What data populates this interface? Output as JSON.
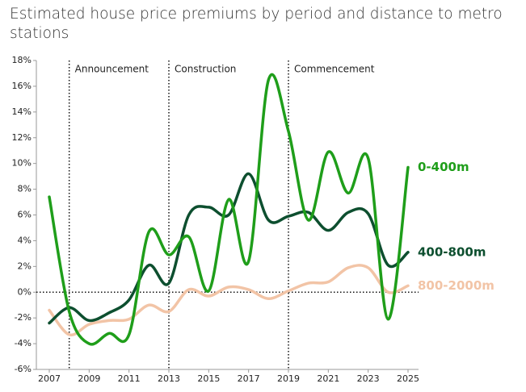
{
  "chart_data": {
    "type": "line",
    "title": "Estimated house price premiums by period and distance to metro stations",
    "x": [
      2007,
      2008,
      2009,
      2010,
      2011,
      2012,
      2013,
      2014,
      2015,
      2016,
      2017,
      2018,
      2019,
      2020,
      2021,
      2022,
      2023,
      2024,
      2025
    ],
    "series": [
      {
        "name": "0-400m",
        "color": "#1f9e1a",
        "values": [
          7.4,
          -1.5,
          -4.0,
          -3.2,
          -3.3,
          4.7,
          2.9,
          4.3,
          0.1,
          7.2,
          2.4,
          16.5,
          12.5,
          5.6,
          10.9,
          7.7,
          10.4,
          -2.1,
          9.7
        ]
      },
      {
        "name": "400-800m",
        "color": "#0d4f2f",
        "values": [
          -2.4,
          -1.2,
          -2.2,
          -1.6,
          -0.6,
          2.1,
          0.7,
          6.0,
          6.6,
          6.0,
          9.2,
          5.6,
          5.9,
          6.2,
          4.8,
          6.2,
          6.1,
          2.1,
          3.1
        ]
      },
      {
        "name": "800-2000m",
        "color": "#f2c4a6",
        "values": [
          -1.4,
          -3.3,
          -2.5,
          -2.2,
          -2.1,
          -1.0,
          -1.5,
          0.2,
          -0.3,
          0.4,
          0.2,
          -0.5,
          0.1,
          0.7,
          0.8,
          1.9,
          1.9,
          0.0,
          0.5
        ]
      }
    ],
    "annotations": [
      {
        "x": 2008,
        "text": "Announcement"
      },
      {
        "x": 2013,
        "text": "Construction"
      },
      {
        "x": 2019,
        "text": "Commencement"
      }
    ],
    "xlim": [
      2007,
      2025
    ],
    "xticks": [
      2007,
      2009,
      2011,
      2013,
      2015,
      2017,
      2019,
      2021,
      2023,
      2025
    ],
    "ylim": [
      -6,
      18
    ],
    "yticks": [
      {
        "value": -6,
        "label": "-6%"
      },
      {
        "value": -4,
        "label": "-4%"
      },
      {
        "value": -2,
        "label": "-2%"
      },
      {
        "value": 0,
        "label": "0%"
      },
      {
        "value": 2,
        "label": "2%"
      },
      {
        "value": 4,
        "label": "4%"
      },
      {
        "value": 6,
        "label": "6%"
      },
      {
        "value": 8,
        "label": "8%"
      },
      {
        "value": 10,
        "label": "10%"
      },
      {
        "value": 12,
        "label": "12%"
      },
      {
        "value": 14,
        "label": "14%"
      },
      {
        "value": 16,
        "label": "16%"
      },
      {
        "value": 18,
        "label": "18%"
      }
    ],
    "grid": false
  }
}
